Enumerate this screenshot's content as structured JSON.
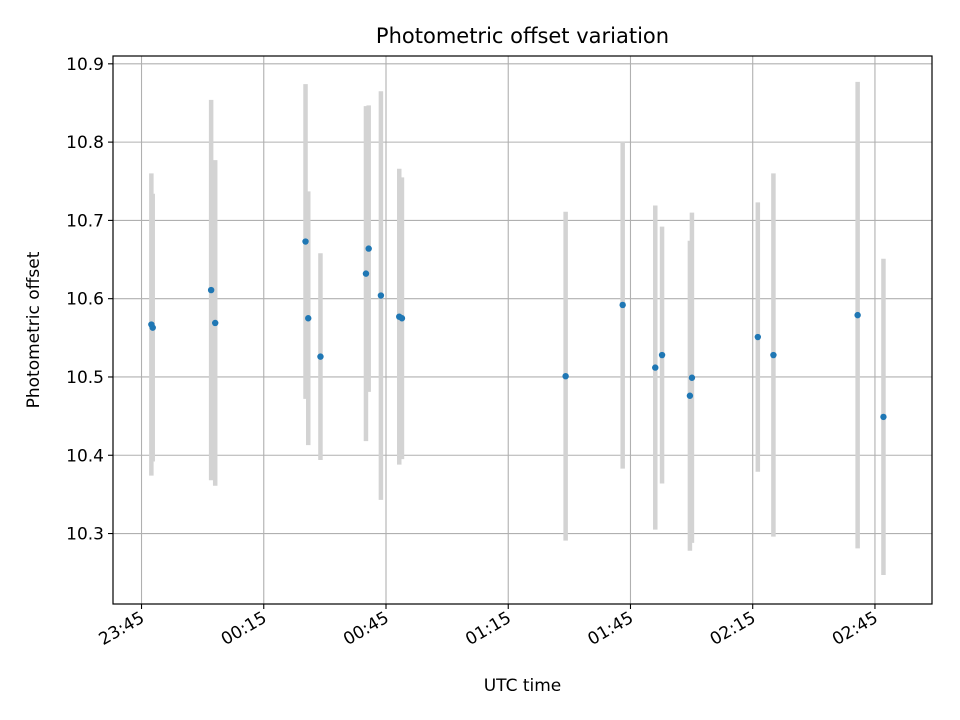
{
  "chart_data": {
    "type": "scatter",
    "title": "Photometric offset variation",
    "xlabel": "UTC time",
    "ylabel": "Photometric offset",
    "grid": true,
    "xlim": [
      "23:38",
      "02:59"
    ],
    "ylim": [
      10.21,
      10.91
    ],
    "x_ticks": [
      "23:45",
      "00:15",
      "00:45",
      "01:15",
      "01:45",
      "02:15",
      "02:45"
    ],
    "y_ticks": [
      "10.3",
      "10.4",
      "10.5",
      "10.6",
      "10.7",
      "10.8",
      "10.9"
    ],
    "point_color": "#1f77b4",
    "errorbar_color": "#d3d3d3",
    "points": [
      {
        "t": "23:47:25",
        "y": 10.567,
        "err": 0.193
      },
      {
        "t": "23:47:45",
        "y": 10.563,
        "err": 0.171
      },
      {
        "t": "00:02:05",
        "y": 10.611,
        "err": 0.243
      },
      {
        "t": "00:03:05",
        "y": 10.569,
        "err": 0.208
      },
      {
        "t": "00:25:15",
        "y": 10.673,
        "err": 0.201
      },
      {
        "t": "00:25:55",
        "y": 10.575,
        "err": 0.162
      },
      {
        "t": "00:28:55",
        "y": 10.526,
        "err": 0.132
      },
      {
        "t": "00:40:05",
        "y": 10.632,
        "err": 0.214
      },
      {
        "t": "00:40:45",
        "y": 10.664,
        "err": 0.183
      },
      {
        "t": "00:43:45",
        "y": 10.604,
        "err": 0.261
      },
      {
        "t": "00:48:15",
        "y": 10.577,
        "err": 0.189
      },
      {
        "t": "00:48:55",
        "y": 10.575,
        "err": 0.18
      },
      {
        "t": "01:29:05",
        "y": 10.501,
        "err": 0.21
      },
      {
        "t": "01:43:05",
        "y": 10.592,
        "err": 0.209
      },
      {
        "t": "01:51:05",
        "y": 10.512,
        "err": 0.207
      },
      {
        "t": "01:52:45",
        "y": 10.528,
        "err": 0.164
      },
      {
        "t": "01:59:35",
        "y": 10.476,
        "err": 0.198
      },
      {
        "t": "02:00:05",
        "y": 10.499,
        "err": 0.211
      },
      {
        "t": "02:16:15",
        "y": 10.551,
        "err": 0.172
      },
      {
        "t": "02:20:05",
        "y": 10.528,
        "err": 0.232
      },
      {
        "t": "02:40:45",
        "y": 10.579,
        "err": 0.298
      },
      {
        "t": "02:47:05",
        "y": 10.449,
        "err": 0.202
      }
    ]
  }
}
